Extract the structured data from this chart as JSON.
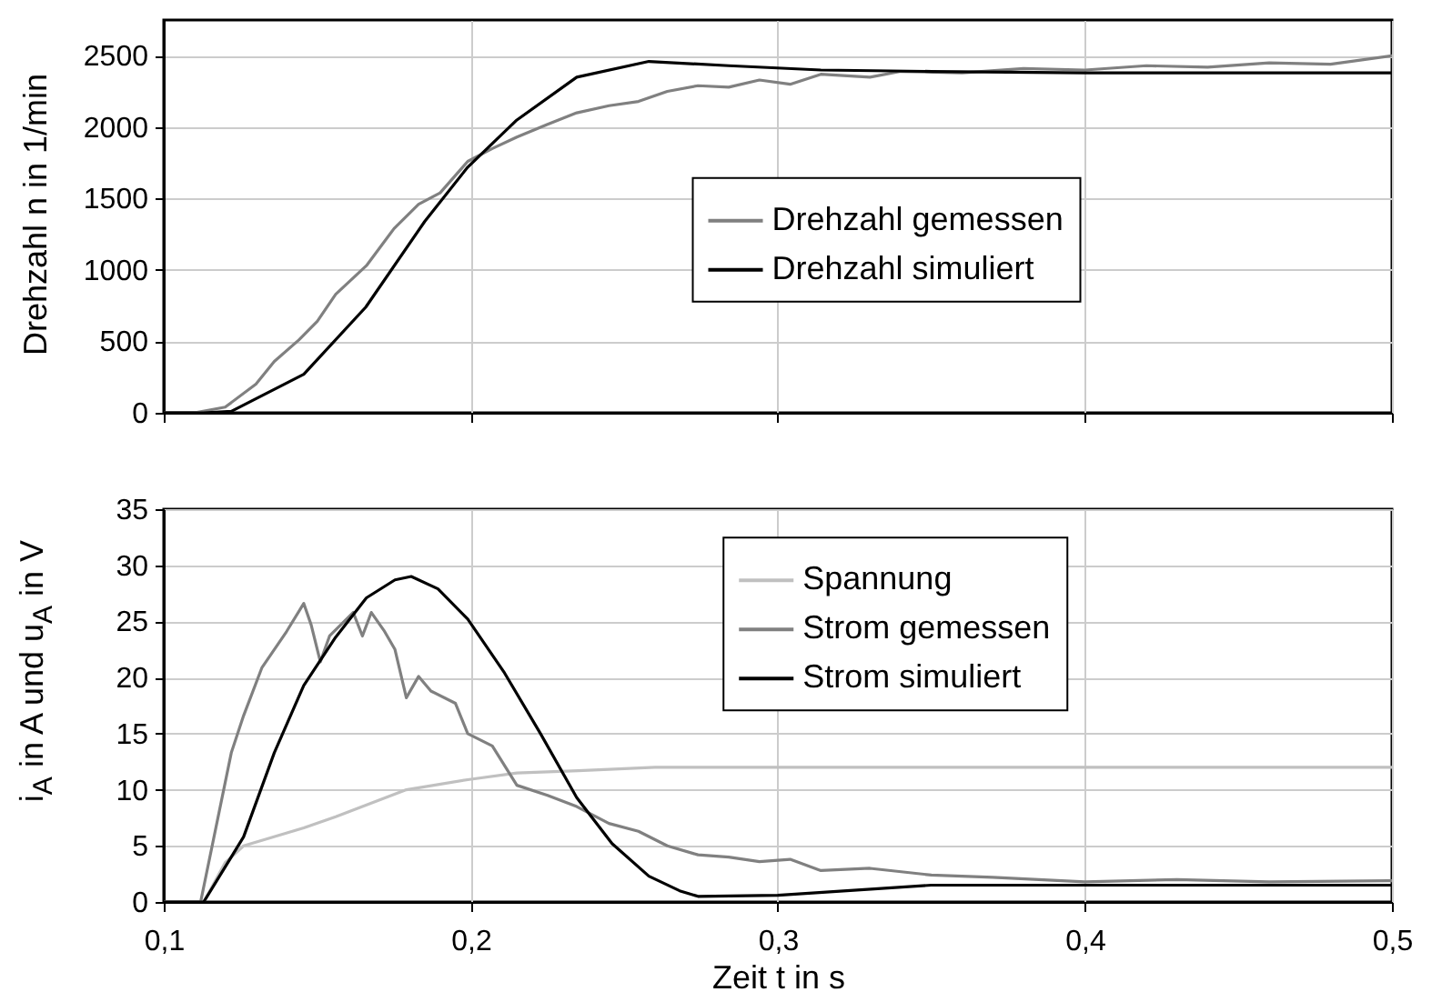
{
  "chart_data": [
    {
      "type": "line",
      "ylabel": "Drehzahl n in 1/min",
      "xlim": [
        0.1,
        0.5
      ],
      "xticks": [
        0.1,
        0.2,
        0.3,
        0.4,
        0.5
      ],
      "ylim": [
        0,
        2750
      ],
      "yticks": [
        0,
        500,
        1000,
        1500,
        2000,
        2500
      ],
      "grid": true,
      "legend": "right",
      "tick_labels": "y",
      "series": [
        {
          "name": "Drehzahl gemessen",
          "color": "#808080",
          "x": [
            0.1,
            0.11,
            0.12,
            0.13,
            0.136,
            0.144,
            0.15,
            0.156,
            0.166,
            0.175,
            0.183,
            0.19,
            0.199,
            0.207,
            0.215,
            0.225,
            0.2345,
            0.245,
            0.2546,
            0.264,
            0.274,
            0.284,
            0.294,
            0.304,
            0.314,
            0.33,
            0.34,
            0.36,
            0.38,
            0.4,
            0.42,
            0.44,
            0.46,
            0.48,
            0.5
          ],
          "values": [
            0,
            0,
            40,
            200,
            360,
            510,
            640,
            830,
            1030,
            1290,
            1460,
            1540,
            1760,
            1850,
            1930,
            2020,
            2100,
            2150,
            2180,
            2250,
            2290,
            2280,
            2330,
            2300,
            2370,
            2350,
            2390,
            2380,
            2410,
            2400,
            2430,
            2420,
            2450,
            2440,
            2500
          ]
        },
        {
          "name": "Drehzahl simuliert",
          "color": "#000000",
          "x": [
            0.1,
            0.113,
            0.122,
            0.1456,
            0.1658,
            0.185,
            0.199,
            0.215,
            0.2345,
            0.258,
            0.284,
            0.314,
            0.35,
            0.4,
            0.5
          ],
          "values": [
            0,
            0,
            10,
            270,
            740,
            1340,
            1720,
            2050,
            2350,
            2460,
            2430,
            2400,
            2390,
            2380,
            2380
          ]
        }
      ]
    },
    {
      "type": "line",
      "xlabel": "Zeit t in s",
      "ylabel": "i$_{A}$ in A und u$_{A}$ in V",
      "xlim": [
        0.1,
        0.5
      ],
      "xticks": [
        {
          "value": 0.1,
          "label": "0,1"
        },
        {
          "value": 0.2,
          "label": "0,2"
        },
        {
          "value": 0.3,
          "label": "0,3"
        },
        {
          "value": 0.4,
          "label": "0,4"
        },
        {
          "value": 0.5,
          "label": "0,5"
        }
      ],
      "ylim": [
        0,
        35
      ],
      "yticks": [
        0,
        5,
        10,
        15,
        20,
        25,
        30,
        35
      ],
      "grid": true,
      "legend": "top right",
      "series": [
        {
          "name": "Spannung",
          "color": "#c0c0c0",
          "x": [
            0.1,
            0.113,
            0.12,
            0.126,
            0.1456,
            0.156,
            0.179,
            0.199,
            0.215,
            0.235,
            0.26,
            0.5
          ],
          "values": [
            0,
            0,
            3.5,
            5.0,
            6.6,
            7.6,
            10.0,
            10.9,
            11.5,
            11.7,
            12,
            12
          ]
        },
        {
          "name": "Strom gemessen",
          "color": "#808080",
          "x": [
            0.1,
            0.112,
            0.122,
            0.126,
            0.132,
            0.14,
            0.1456,
            0.148,
            0.151,
            0.154,
            0.1617,
            0.1647,
            0.1676,
            0.1717,
            0.1753,
            0.179,
            0.183,
            0.187,
            0.195,
            0.199,
            0.207,
            0.215,
            0.225,
            0.2345,
            0.245,
            0.2546,
            0.264,
            0.274,
            0.284,
            0.294,
            0.304,
            0.314,
            0.33,
            0.35,
            0.37,
            0.4,
            0.43,
            0.46,
            0.5
          ],
          "values": [
            0,
            0,
            13.3,
            16.6,
            20.9,
            24.1,
            26.6,
            24.7,
            21.4,
            23.7,
            25.8,
            23.7,
            25.8,
            24.2,
            22.5,
            18.2,
            20.1,
            18.8,
            17.7,
            15.0,
            13.9,
            10.4,
            9.5,
            8.5,
            7.0,
            6.3,
            5.0,
            4.2,
            4.0,
            3.6,
            3.8,
            2.8,
            3.0,
            2.4,
            2.2,
            1.8,
            2.0,
            1.8,
            1.9
          ]
        },
        {
          "name": "Strom simuliert",
          "color": "#000000",
          "x": [
            0.1,
            0.113,
            0.126,
            0.136,
            0.1456,
            0.156,
            0.166,
            0.1753,
            0.1806,
            0.1893,
            0.199,
            0.211,
            0.2227,
            0.2345,
            0.246,
            0.258,
            0.268,
            0.274,
            0.3,
            0.35,
            0.5
          ],
          "values": [
            0,
            0,
            5.8,
            13.3,
            19.3,
            23.6,
            27.1,
            28.7,
            29.0,
            27.9,
            25.2,
            20.4,
            15.0,
            9.3,
            5.2,
            2.3,
            1.0,
            0.5,
            0.6,
            1.5,
            1.5
          ]
        }
      ]
    }
  ]
}
